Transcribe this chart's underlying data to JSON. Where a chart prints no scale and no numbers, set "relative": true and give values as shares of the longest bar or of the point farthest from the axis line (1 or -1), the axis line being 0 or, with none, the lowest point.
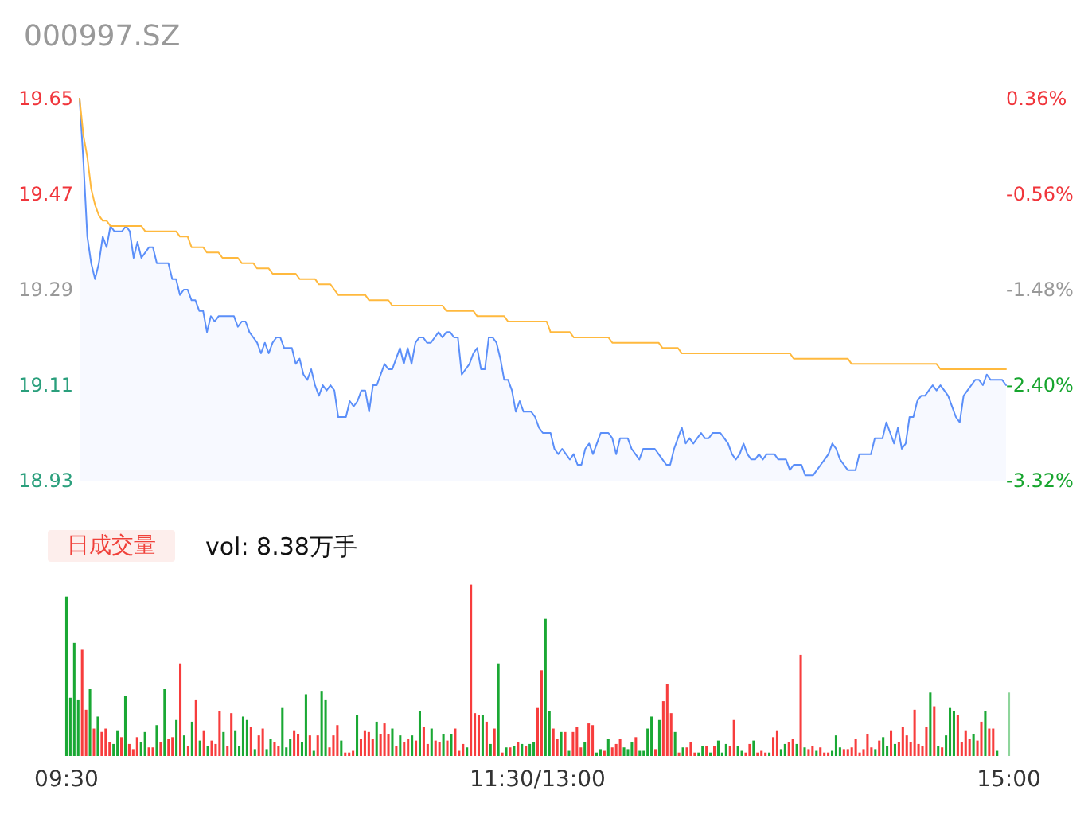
{
  "chart_data": [
    {
      "type": "area",
      "title": "000997.SZ",
      "marker": "none",
      "categories": [
        null,
        null,
        null,
        null,
        null,
        null,
        null,
        null,
        null,
        null,
        null,
        null,
        null,
        null,
        null,
        null,
        null,
        null,
        null,
        null,
        null,
        null,
        null,
        null,
        null,
        null,
        null,
        null,
        null,
        null,
        null,
        null,
        null,
        null,
        null,
        null,
        null,
        null,
        null,
        null,
        null,
        null,
        null,
        null,
        null,
        null,
        null,
        null,
        null,
        null,
        null,
        null,
        null,
        null,
        null,
        null,
        null,
        null,
        null,
        null,
        null,
        null,
        null,
        null,
        null,
        null,
        null,
        null,
        null,
        null,
        null,
        null,
        null,
        null,
        null,
        null,
        null,
        null,
        null,
        null,
        null,
        null,
        null,
        null,
        null,
        null,
        null,
        null,
        null,
        null,
        null,
        null,
        null,
        null,
        null,
        null,
        null,
        null,
        null,
        null,
        null,
        null,
        null,
        null,
        null,
        null,
        null,
        null,
        null,
        null,
        null,
        null,
        null,
        null,
        null,
        null,
        null,
        null,
        null,
        null,
        null,
        null,
        null,
        null,
        null,
        null,
        null,
        null,
        null,
        null,
        null,
        null,
        null,
        null,
        null,
        null,
        null,
        null,
        null,
        null,
        null,
        null,
        null,
        null,
        null,
        null,
        null,
        null,
        null,
        null,
        null,
        null,
        null,
        null,
        null,
        null,
        null,
        null,
        null,
        null,
        null,
        null,
        null,
        null,
        null,
        null,
        null,
        null,
        null,
        null,
        null,
        null,
        null,
        null,
        null,
        null,
        null,
        null,
        null,
        null,
        null,
        null,
        null,
        null,
        null,
        null,
        null,
        null,
        null,
        null,
        null,
        null,
        null,
        null,
        null,
        null,
        null,
        null,
        null,
        null,
        null,
        null,
        null,
        null,
        null,
        null,
        null,
        null,
        null,
        null,
        null,
        null,
        null,
        null,
        null,
        null,
        null,
        null,
        null,
        null,
        null,
        null,
        null,
        null,
        null,
        null,
        null,
        null,
        null,
        null,
        null,
        null,
        null,
        null,
        null,
        null,
        null,
        null,
        null,
        null,
        null
      ],
      "ylim": [
        18.93,
        19.65
      ],
      "yticks": [
        18.93,
        19.11,
        19.29,
        19.47,
        19.65
      ],
      "y2lim": [
        -3.32,
        0.36
      ],
      "y2ticks": [
        {
          "value": -3.32,
          "label": "-3.32%"
        },
        {
          "value": -2.4,
          "label": "-2.40%"
        },
        {
          "value": -1.48,
          "label": "-1.48%"
        },
        {
          "value": -0.56,
          "label": "-0.56%"
        },
        {
          "value": 0.36,
          "label": "0.36%"
        }
      ],
      "series": [
        {
          "color": "#5b8ff9",
          "values": [
            19.65,
            19.53,
            19.39,
            19.34,
            19.31,
            19.34,
            19.39,
            19.37,
            19.41,
            19.4,
            19.4,
            19.4,
            19.41,
            19.4,
            19.35,
            19.38,
            19.35,
            19.36,
            19.37,
            19.37,
            19.34,
            19.34,
            19.34,
            19.34,
            19.31,
            19.31,
            19.28,
            19.29,
            19.29,
            19.27,
            19.27,
            19.25,
            19.25,
            19.21,
            19.24,
            19.23,
            19.24,
            19.24,
            19.24,
            19.24,
            19.24,
            19.22,
            19.23,
            19.23,
            19.21,
            19.2,
            19.19,
            19.17,
            19.19,
            19.17,
            19.19,
            19.2,
            19.2,
            19.18,
            19.18,
            19.18,
            19.15,
            19.16,
            19.13,
            19.12,
            19.14,
            19.11,
            19.09,
            19.11,
            19.1,
            19.11,
            19.1,
            19.05,
            19.05,
            19.05,
            19.08,
            19.07,
            19.08,
            19.1,
            19.1,
            19.06,
            19.11,
            19.11,
            19.13,
            19.15,
            19.14,
            19.14,
            19.16,
            19.18,
            19.15,
            19.18,
            19.15,
            19.19,
            19.2,
            19.2,
            19.19,
            19.19,
            19.2,
            19.21,
            19.2,
            19.21,
            19.21,
            19.2,
            19.2,
            19.13,
            19.14,
            19.15,
            19.17,
            19.18,
            19.14,
            19.14,
            19.2,
            19.2,
            19.19,
            19.16,
            19.12,
            19.12,
            19.1,
            19.06,
            19.08,
            19.06,
            19.06,
            19.06,
            19.05,
            19.03,
            19.02,
            19.02,
            19.02,
            18.99,
            18.98,
            18.99,
            18.98,
            18.97,
            18.98,
            18.96,
            18.96,
            18.99,
            19.0,
            18.98,
            19.0,
            19.02,
            19.02,
            19.02,
            19.01,
            18.98,
            19.01,
            19.01,
            19.01,
            18.99,
            18.98,
            18.97,
            18.99,
            18.99,
            18.99,
            18.99,
            18.98,
            18.97,
            18.96,
            18.96,
            18.99,
            19.01,
            19.03,
            19.0,
            19.01,
            19.0,
            19.01,
            19.02,
            19.01,
            19.01,
            19.02,
            19.02,
            19.02,
            19.01,
            19.0,
            18.98,
            18.97,
            18.98,
            19.0,
            18.98,
            18.97,
            18.97,
            18.98,
            18.97,
            18.98,
            18.98,
            18.98,
            18.97,
            18.97,
            18.97,
            18.95,
            18.96,
            18.96,
            18.96,
            18.94,
            18.94,
            18.94,
            18.95,
            18.96,
            18.97,
            18.98,
            19.0,
            18.99,
            18.97,
            18.96,
            18.95,
            18.95,
            18.95,
            18.98,
            18.98,
            18.98,
            18.98,
            19.01,
            19.01,
            19.01,
            19.04,
            19.02,
            19.0,
            19.03,
            18.99,
            19.0,
            19.05,
            19.05,
            19.08,
            19.09,
            19.09,
            19.1,
            19.11,
            19.1,
            19.11,
            19.1,
            19.09,
            19.07,
            19.05,
            19.04,
            19.09,
            19.1,
            19.11,
            19.12,
            19.12,
            19.11,
            19.13,
            19.12,
            19.12,
            19.12,
            19.12,
            19.11
          ]
        },
        {
          "type": "line",
          "color": "#ffb93e",
          "values": [
            19.65,
            19.58,
            19.54,
            19.48,
            19.45,
            19.43,
            19.42,
            19.42,
            19.41,
            19.41,
            19.41,
            19.41,
            19.41,
            19.41,
            19.41,
            19.41,
            19.41,
            19.4,
            19.4,
            19.4,
            19.4,
            19.4,
            19.4,
            19.4,
            19.4,
            19.4,
            19.39,
            19.39,
            19.39,
            19.37,
            19.37,
            19.37,
            19.37,
            19.36,
            19.36,
            19.36,
            19.36,
            19.35,
            19.35,
            19.35,
            19.35,
            19.35,
            19.34,
            19.34,
            19.34,
            19.34,
            19.33,
            19.33,
            19.33,
            19.33,
            19.32,
            19.32,
            19.32,
            19.32,
            19.32,
            19.32,
            19.32,
            19.31,
            19.31,
            19.31,
            19.31,
            19.31,
            19.3,
            19.3,
            19.3,
            19.3,
            19.29,
            19.28,
            19.28,
            19.28,
            19.28,
            19.28,
            19.28,
            19.28,
            19.28,
            19.27,
            19.27,
            19.27,
            19.27,
            19.27,
            19.27,
            19.26,
            19.26,
            19.26,
            19.26,
            19.26,
            19.26,
            19.26,
            19.26,
            19.26,
            19.26,
            19.26,
            19.26,
            19.26,
            19.26,
            19.25,
            19.25,
            19.25,
            19.25,
            19.25,
            19.25,
            19.25,
            19.25,
            19.24,
            19.24,
            19.24,
            19.24,
            19.24,
            19.24,
            19.24,
            19.24,
            19.23,
            19.23,
            19.23,
            19.23,
            19.23,
            19.23,
            19.23,
            19.23,
            19.23,
            19.23,
            19.23,
            19.21,
            19.21,
            19.21,
            19.21,
            19.21,
            19.21,
            19.2,
            19.2,
            19.2,
            19.2,
            19.2,
            19.2,
            19.2,
            19.2,
            19.2,
            19.2,
            19.19,
            19.19,
            19.19,
            19.19,
            19.19,
            19.19,
            19.19,
            19.19,
            19.19,
            19.19,
            19.19,
            19.19,
            19.19,
            19.18,
            19.18,
            19.18,
            19.18,
            19.18,
            19.17,
            19.17,
            19.17,
            19.17,
            19.17,
            19.17,
            19.17,
            19.17,
            19.17,
            19.17,
            19.17,
            19.17,
            19.17,
            19.17,
            19.17,
            19.17,
            19.17,
            19.17,
            19.17,
            19.17,
            19.17,
            19.17,
            19.17,
            19.17,
            19.17,
            19.17,
            19.17,
            19.17,
            19.17,
            19.16,
            19.16,
            19.16,
            19.16,
            19.16,
            19.16,
            19.16,
            19.16,
            19.16,
            19.16,
            19.16,
            19.16,
            19.16,
            19.16,
            19.16,
            19.15,
            19.15,
            19.15,
            19.15,
            19.15,
            19.15,
            19.15,
            19.15,
            19.15,
            19.15,
            19.15,
            19.15,
            19.15,
            19.15,
            19.15,
            19.15,
            19.15,
            19.15,
            19.15,
            19.15,
            19.15,
            19.15,
            19.15,
            19.14,
            19.14,
            19.14,
            19.14,
            19.14,
            19.14,
            19.14,
            19.14,
            19.14,
            19.14,
            19.14,
            19.14,
            19.14,
            19.14,
            19.14,
            19.14,
            19.14,
            19.14
          ]
        }
      ]
    },
    {
      "type": "bar",
      "title": "日成交量",
      "subtitle": "vol: 8.38万手",
      "relative": true,
      "categories": [
        "09:30",
        null,
        null,
        null,
        null,
        null,
        null,
        null,
        null,
        null,
        null,
        null,
        null,
        null,
        null,
        null,
        null,
        null,
        null,
        null,
        null,
        null,
        null,
        null,
        null,
        null,
        null,
        null,
        null,
        null,
        null,
        null,
        null,
        null,
        null,
        null,
        null,
        null,
        null,
        null,
        null,
        null,
        null,
        null,
        null,
        null,
        null,
        null,
        null,
        null,
        null,
        null,
        null,
        null,
        null,
        null,
        null,
        null,
        null,
        null,
        null,
        null,
        null,
        null,
        null,
        null,
        null,
        null,
        null,
        null,
        null,
        null,
        null,
        null,
        null,
        null,
        null,
        null,
        null,
        null,
        null,
        null,
        null,
        null,
        null,
        null,
        null,
        null,
        null,
        null,
        null,
        null,
        null,
        null,
        null,
        null,
        null,
        null,
        null,
        null,
        null,
        null,
        null,
        null,
        null,
        null,
        null,
        null,
        null,
        null,
        null,
        null,
        null,
        null,
        null,
        null,
        null,
        null,
        null,
        null,
        "11:30/13:00",
        null,
        null,
        null,
        null,
        null,
        null,
        null,
        null,
        null,
        null,
        null,
        null,
        null,
        null,
        null,
        null,
        null,
        null,
        null,
        null,
        null,
        null,
        null,
        null,
        null,
        null,
        null,
        null,
        null,
        null,
        null,
        null,
        null,
        null,
        null,
        null,
        null,
        null,
        null,
        null,
        null,
        null,
        null,
        null,
        null,
        null,
        null,
        null,
        null,
        null,
        null,
        null,
        null,
        null,
        null,
        null,
        null,
        null,
        null,
        null,
        null,
        null,
        null,
        null,
        null,
        null,
        null,
        null,
        null,
        null,
        null,
        null,
        null,
        null,
        null,
        null,
        null,
        null,
        null,
        null,
        null,
        null,
        null,
        null,
        null,
        null,
        null,
        null,
        null,
        null,
        null,
        null,
        null,
        null,
        null,
        null,
        null,
        null,
        null,
        null,
        null,
        null,
        null,
        null,
        null,
        null,
        null,
        null,
        null,
        null,
        null,
        null,
        null,
        null,
        null,
        null,
        null,
        null,
        null,
        "15:00"
      ],
      "values": [
        0.93,
        0.34,
        0.66,
        0.33,
        0.62,
        0.27,
        0.39,
        0.16,
        0.23,
        0.14,
        0.16,
        0.08,
        0.07,
        0.15,
        0.11,
        0.35,
        0.07,
        0.04,
        0.11,
        0.08,
        0.14,
        0.05,
        0.05,
        0.18,
        0.08,
        0.39,
        0.1,
        0.11,
        0.21,
        0.54,
        0.12,
        0.06,
        0.2,
        0.33,
        0.09,
        0.15,
        0.06,
        0.09,
        0.07,
        0.26,
        0.14,
        0.06,
        0.25,
        0.15,
        0.06,
        0.23,
        0.21,
        0.17,
        0.04,
        0.12,
        0.16,
        0.04,
        0.1,
        0.08,
        0.06,
        0.28,
        0.05,
        0.1,
        0.15,
        0.13,
        0.08,
        0.36,
        0.12,
        0.03,
        0.12,
        0.38,
        0.33,
        0.05,
        0.12,
        0.18,
        0.09,
        0.02,
        0.02,
        0.03,
        0.24,
        0.1,
        0.15,
        0.14,
        0.1,
        0.2,
        0.13,
        0.19,
        0.13,
        0.16,
        0.06,
        0.12,
        0.08,
        0.1,
        0.12,
        0.09,
        0.26,
        0.17,
        0.07,
        0.16,
        0.09,
        0.08,
        0.13,
        0.09,
        0.13,
        0.16,
        0.03,
        0.07,
        0.05,
        1,
        0.25,
        0.24,
        0.24,
        0.2,
        0.07,
        0.16,
        0.54,
        0.02,
        0.05,
        0.05,
        0.06,
        0.08,
        0.07,
        0.06,
        0.07,
        0.08,
        0.28,
        0.5,
        0.8,
        0.26,
        0.16,
        0.1,
        0.14,
        0.14,
        0.03,
        0.14,
        0.17,
        0.05,
        0.08,
        0.19,
        0.18,
        0.02,
        0.04,
        0.03,
        0.1,
        0.05,
        0.07,
        0.1,
        0.05,
        0.04,
        0.08,
        0.11,
        0.03,
        0.03,
        0.16,
        0.23,
        0.04,
        0.21,
        0.32,
        0.42,
        0.25,
        0.14,
        0.02,
        0.05,
        0.05,
        0.08,
        0.02,
        0.02,
        0.06,
        0.06,
        0.02,
        0.06,
        0.09,
        0.02,
        0.07,
        0.06,
        0.21,
        0.06,
        0.03,
        0.02,
        0.07,
        0.09,
        0.02,
        0.03,
        0.02,
        0.02,
        0.11,
        0.15,
        0.04,
        0.07,
        0.08,
        0.1,
        0.07,
        0.59,
        0.05,
        0.04,
        0.06,
        0.03,
        0.05,
        0.02,
        0.02,
        0.03,
        0.12,
        0.05,
        0.04,
        0.04,
        0.05,
        0.1,
        0.02,
        0.04,
        0.13,
        0.05,
        0.04,
        0.09,
        0.11,
        0.06,
        0.15,
        0.07,
        0.08,
        0.17,
        0.12,
        0.08,
        0.27,
        0.07,
        0.06,
        0.17,
        0.37,
        0.29,
        0.06,
        0.05,
        0.12,
        0.28,
        0.26,
        0.24,
        0.08,
        0.15,
        0.1,
        0.13,
        0.09,
        0.2,
        0.26,
        0.16,
        0.16,
        0.03,
        0,
        0,
        0.37
      ],
      "colors": [
        "#1aa834",
        "#1aa834",
        "#1aa834",
        "#1aa834",
        "#f73d3d",
        "#f73d3d",
        "#1aa834",
        "#f73d3d",
        "#1aa834",
        "#f73d3d",
        "#f73d3d",
        "#f73d3d",
        "#1aa834",
        "#1aa834",
        "#f73d3d",
        "#1aa834",
        "#f73d3d",
        "#f73d3d",
        "#f73d3d",
        "#1aa834",
        "#1aa834",
        "#f73d3d",
        "#f73d3d",
        "#1aa834",
        "#f73d3d",
        "#1aa834",
        "#f73d3d",
        "#f73d3d",
        "#1aa834",
        "#f73d3d",
        "#1aa834",
        "#f73d3d",
        "#1aa834",
        "#f73d3d",
        "#1aa834",
        "#f73d3d",
        "#1aa834",
        "#f73d3d",
        "#f73d3d",
        "#f73d3d",
        "#1aa834",
        "#f73d3d",
        "#f73d3d",
        "#1aa834",
        "#1aa834",
        "#1aa834",
        "#1aa834",
        "#f73d3d",
        "#1aa834",
        "#f73d3d",
        "#f73d3d",
        "#1aa834",
        "#1aa834",
        "#f73d3d",
        "#f73d3d",
        "#1aa834",
        "#1aa834",
        "#1aa834",
        "#f73d3d",
        "#f73d3d",
        "#1aa834",
        "#1aa834",
        "#f73d3d",
        "#1aa834",
        "#f73d3d",
        "#1aa834",
        "#1aa834",
        "#f73d3d",
        "#f73d3d",
        "#f73d3d",
        "#1aa834",
        "#f73d3d",
        "#f73d3d",
        "#f73d3d",
        "#1aa834",
        "#f73d3d",
        "#f73d3d",
        "#f73d3d",
        "#f73d3d",
        "#1aa834",
        "#f73d3d",
        "#f73d3d",
        "#f73d3d",
        "#1aa834",
        "#f73d3d",
        "#1aa834",
        "#f73d3d",
        "#f73d3d",
        "#1aa834",
        "#f73d3d",
        "#1aa834",
        "#f73d3d",
        "#f73d3d",
        "#1aa834",
        "#f73d3d",
        "#f73d3d",
        "#1aa834",
        "#f73d3d",
        "#1aa834",
        "#f73d3d",
        "#f73d3d",
        "#f73d3d",
        "#1aa834",
        "#f73d3d",
        "#f73d3d",
        "#f73d3d",
        "#1aa834",
        "#f73d3d",
        "#1aa834",
        "#f73d3d",
        "#1aa834",
        "#f73d3d",
        "#1aa834",
        "#f73d3d",
        "#1aa834",
        "#f73d3d",
        "#1aa834",
        "#f73d3d",
        "#1aa834",
        "#1aa834",
        "#f73d3d",
        "#f73d3d",
        "#1aa834",
        "#1aa834",
        "#f73d3d",
        "#f73d3d",
        "#1aa834",
        "#f73d3d",
        "#1aa834",
        "#f73d3d",
        "#f73d3d",
        "#f73d3d",
        "#1aa834",
        "#f73d3d",
        "#f73d3d",
        "#1aa834",
        "#1aa834",
        "#f73d3d",
        "#1aa834",
        "#f73d3d",
        "#f73d3d",
        "#f73d3d",
        "#1aa834",
        "#1aa834",
        "#1aa834",
        "#f73d3d",
        "#1aa834",
        "#1aa834",
        "#1aa834",
        "#1aa834",
        "#f73d3d",
        "#1aa834",
        "#f73d3d",
        "#f73d3d",
        "#f73d3d",
        "#1aa834",
        "#f73d3d",
        "#1aa834",
        "#f73d3d",
        "#f73d3d",
        "#f73d3d",
        "#1aa834",
        "#1aa834",
        "#f73d3d",
        "#1aa834",
        "#f73d3d",
        "#1aa834",
        "#1aa834",
        "#1aa834",
        "#f73d3d",
        "#f73d3d",
        "#1aa834",
        "#1aa834",
        "#f73d3d",
        "#f73d3d",
        "#1aa834",
        "#f73d3d",
        "#f73d3d",
        "#f73d3d",
        "#1aa834",
        "#f73d3d",
        "#f73d3d",
        "#1aa834",
        "#1aa834",
        "#f73d3d",
        "#f73d3d",
        "#1aa834",
        "#f73d3d",
        "#1aa834",
        "#f73d3d",
        "#f73d3d",
        "#1aa834",
        "#f73d3d",
        "#f73d3d",
        "#f73d3d",
        "#1aa834",
        "#1aa834",
        "#1aa834",
        "#f73d3d",
        "#f73d3d",
        "#f73d3d",
        "#f73d3d",
        "#f73d3d",
        "#f73d3d",
        "#f73d3d",
        "#f73d3d",
        "#1aa834",
        "#f73d3d",
        "#1aa834",
        "#1aa834",
        "#f73d3d",
        "#1aa834",
        "#f73d3d",
        "#f73d3d",
        "#f73d3d",
        "#f73d3d",
        "#f73d3d",
        "#f73d3d",
        "#f73d3d",
        "#f73d3d",
        "#1aa834",
        "#f73d3d",
        "#1aa834",
        "#f73d3d",
        "#1aa834",
        "#1aa834",
        "#1aa834",
        "#f73d3d",
        "#f73d3d",
        "#f73d3d",
        "#f73d3d",
        "#1aa834",
        "#f73d3d",
        "#f73d3d",
        "#1aa834",
        "#f73d3d",
        "#f73d3d",
        "#1aa834",
        "#1aa834",
        "#1aa834",
        "#8fd59c"
      ]
    }
  ]
}
